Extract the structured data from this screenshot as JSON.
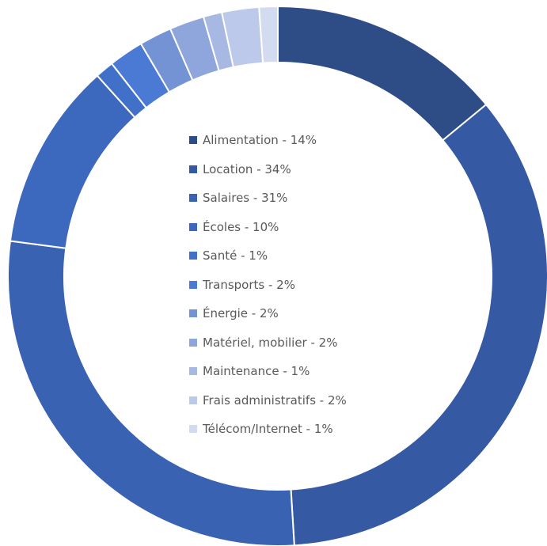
{
  "chart_data": {
    "type": "pie",
    "variant": "doughnut",
    "title": "",
    "legend_position": "center",
    "slices": [
      {
        "label": "Alimentation - 14%",
        "value": 14,
        "color": "#2E4D86"
      },
      {
        "label": "Location - 34%",
        "value": 34,
        "color": "#3559A2"
      },
      {
        "label": "Salaires - 31%",
        "value": 31,
        "color": "#3A62B2"
      },
      {
        "label": "Écoles - 10%",
        "value": 10,
        "color": "#3C68BE"
      },
      {
        "label": "Santé - 1%",
        "value": 1,
        "color": "#4170C8"
      },
      {
        "label": "Transports - 2%",
        "value": 2,
        "color": "#4A7AD3"
      },
      {
        "label": "Énergie - 2%",
        "value": 2,
        "color": "#7493D4"
      },
      {
        "label": "Matériel, mobilier - 2%",
        "value": 2,
        "color": "#8EA6DB"
      },
      {
        "label": "Maintenance - 1%",
        "value": 1,
        "color": "#A7B9E2"
      },
      {
        "label": "Frais administratifs - 2%",
        "value": 2,
        "color": "#BCC9EA"
      },
      {
        "label": "Télécom/Internet - 1%",
        "value": 1,
        "color": "#D3DBF0"
      }
    ]
  }
}
